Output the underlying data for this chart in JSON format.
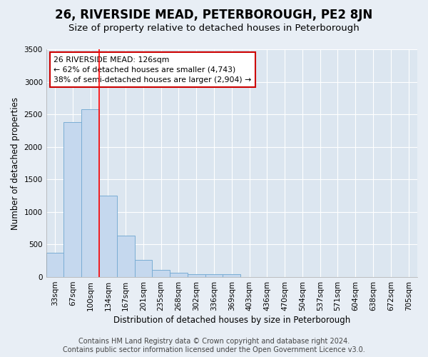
{
  "title": "26, RIVERSIDE MEAD, PETERBOROUGH, PE2 8JN",
  "subtitle": "Size of property relative to detached houses in Peterborough",
  "xlabel": "Distribution of detached houses by size in Peterborough",
  "ylabel": "Number of detached properties",
  "categories": [
    "33sqm",
    "67sqm",
    "100sqm",
    "134sqm",
    "167sqm",
    "201sqm",
    "235sqm",
    "268sqm",
    "302sqm",
    "336sqm",
    "369sqm",
    "403sqm",
    "436sqm",
    "470sqm",
    "504sqm",
    "537sqm",
    "571sqm",
    "604sqm",
    "638sqm",
    "672sqm",
    "705sqm"
  ],
  "values": [
    370,
    2380,
    2580,
    1250,
    640,
    260,
    110,
    65,
    50,
    50,
    45,
    0,
    0,
    0,
    0,
    0,
    0,
    0,
    0,
    0,
    0
  ],
  "bar_color": "#c5d8ee",
  "bar_edgecolor": "#7aadd4",
  "red_line_x": 3.0,
  "annotation_text1": "26 RIVERSIDE MEAD: 126sqm",
  "annotation_text2": "← 62% of detached houses are smaller (4,743)",
  "annotation_text3": "38% of semi-detached houses are larger (2,904) →",
  "annotation_box_color": "#ffffff",
  "annotation_box_edgecolor": "#cc0000",
  "ylim": [
    0,
    3500
  ],
  "yticks": [
    0,
    500,
    1000,
    1500,
    2000,
    2500,
    3000,
    3500
  ],
  "footer_text": "Contains HM Land Registry data © Crown copyright and database right 2024.\nContains public sector information licensed under the Open Government Licence v3.0.",
  "background_color": "#e8eef5",
  "plot_background_color": "#dce6f0",
  "grid_color": "#ffffff",
  "title_fontsize": 12,
  "subtitle_fontsize": 9.5,
  "axis_label_fontsize": 8.5,
  "tick_fontsize": 7.5,
  "footer_fontsize": 7
}
